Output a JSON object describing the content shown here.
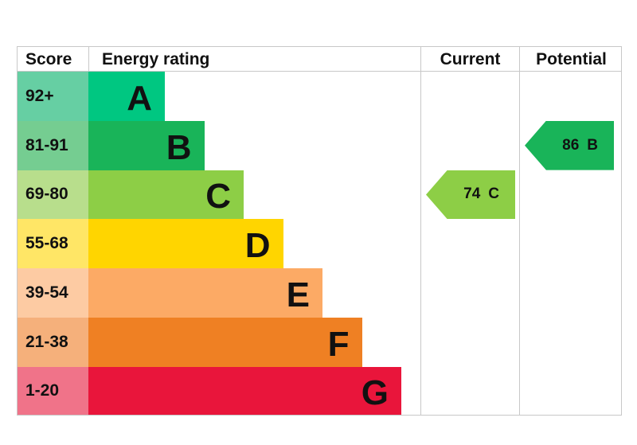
{
  "header": {
    "score": "Score",
    "energy_rating": "Energy rating",
    "current": "Current",
    "potential": "Potential"
  },
  "chart_data": {
    "type": "bar",
    "bands": [
      {
        "score": "92+",
        "letter": "A",
        "bar_color": "#00c781",
        "score_color": "#66cfa3"
      },
      {
        "score": "81-91",
        "letter": "B",
        "bar_color": "#19b459",
        "score_color": "#75cd91"
      },
      {
        "score": "69-80",
        "letter": "C",
        "bar_color": "#8dce46",
        "score_color": "#b8de8c"
      },
      {
        "score": "55-68",
        "letter": "D",
        "bar_color": "#ffd500",
        "score_color": "#ffe666"
      },
      {
        "score": "39-54",
        "letter": "E",
        "bar_color": "#fcaa65",
        "score_color": "#fdcba3"
      },
      {
        "score": "21-38",
        "letter": "F",
        "bar_color": "#ef8023",
        "score_color": "#f5b07b"
      },
      {
        "score": "1-20",
        "letter": "G",
        "bar_color": "#e9153b",
        "score_color": "#f07389"
      }
    ],
    "current": {
      "value": "74",
      "letter": "C",
      "color": "#8dce46"
    },
    "potential": {
      "value": "86",
      "letter": "B",
      "color": "#19b459"
    }
  }
}
